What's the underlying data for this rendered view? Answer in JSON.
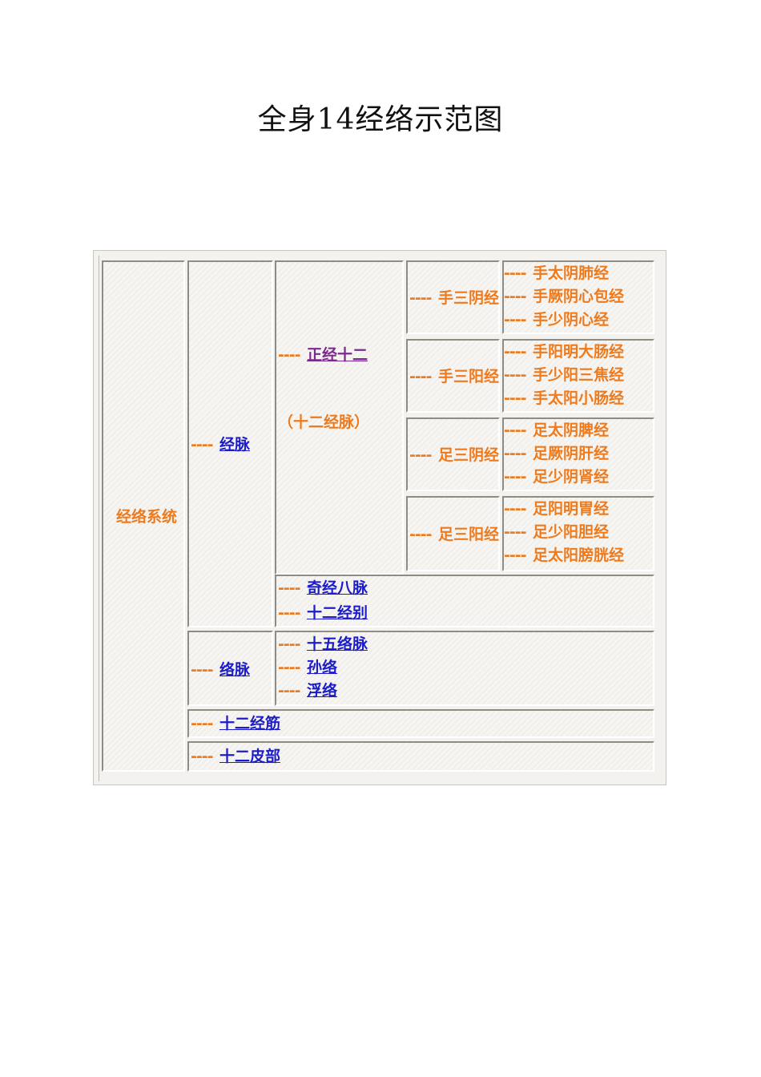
{
  "title": "全身14经络示范图",
  "dash": "----",
  "root": "经络系统",
  "jingmai": "经脉",
  "zhengjing": "正经十二",
  "shierjingmai": "（十二经脉）",
  "groups": [
    {
      "name": "手三阴经",
      "items": [
        "手太阴肺经",
        "手厥阴心包经",
        "手少阴心经"
      ]
    },
    {
      "name": "手三阳经",
      "items": [
        "手阳明大肠经",
        "手少阳三焦经",
        "手太阳小肠经"
      ]
    },
    {
      "name": "足三阴经",
      "items": [
        "足太阴脾经",
        "足厥阴肝经",
        "足少阴肾经"
      ]
    },
    {
      "name": "足三阳经",
      "items": [
        "足阳明胃经",
        "足少阳胆经",
        "足太阳膀胱经"
      ]
    }
  ],
  "other_jingmai": [
    "奇经八脉",
    "十二经别"
  ],
  "luomai": "络脉",
  "luomai_items": [
    "十五络脉",
    "孙络",
    "浮络"
  ],
  "jingjin": "十二经筋",
  "pibu": "十二皮部",
  "colors": {
    "branch_text": "#ee7a1e",
    "link": "#1c1cc8",
    "visited_link": "#7a2a8e"
  }
}
